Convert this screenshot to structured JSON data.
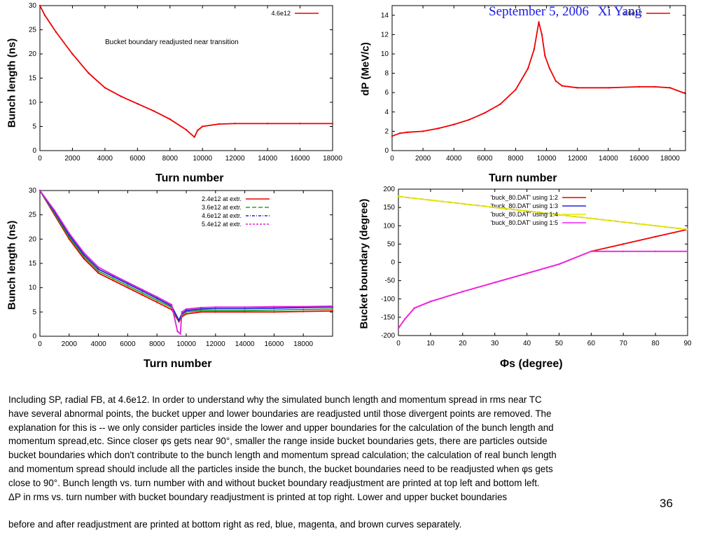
{
  "header": {
    "date": "September 5, 2006",
    "author": "Xi Yang"
  },
  "slide_number": "36",
  "caption": {
    "lines": [
      "Including SP, radial FB, at 4.6e12.  In order to understand why the simulated bunch length and momentum spread in rms near TC",
      "have several abnormal points, the bucket upper and lower boundaries are readjusted until those divergent points are removed.  The",
      "explanation for this is -- we only consider particles inside the lower and upper boundaries for the calculation of the bunch length and",
      "momentum spread,etc.  Since closer φs gets near 90°, smaller the range inside bucket boundaries gets, there are particles outside",
      "bucket boundaries which don't contribute to the bunch length and momentum spread calculation; the calculation of real bunch length",
      "and momentum spread should include all the particles inside the bunch, the bucket boundaries need to be readjusted when φs gets",
      "close to 90°.  Bunch length vs. turn number with and without bucket boundary readjustment are printed at top left and bottom left.",
      "ΔP in rms vs. turn number with bucket boundary readjustment is printed at top right.  Lower and upper bucket boundaries"
    ],
    "last_line": "before and after readjustment are printed at bottom right as red, blue, magenta, and brown curves separately."
  },
  "chart_data": [
    {
      "type": "line",
      "xlabel": "Turn number",
      "ylabel": "Bunch length (ns)",
      "xlim": [
        0,
        18000
      ],
      "ylim": [
        0,
        30
      ],
      "xticks": [
        0,
        2000,
        4000,
        6000,
        8000,
        10000,
        12000,
        14000,
        16000,
        18000
      ],
      "yticks": [
        0,
        5,
        10,
        15,
        20,
        25,
        30
      ],
      "annotation": "Bucket boundary readjusted near transition",
      "legend_position": "top-right",
      "series": [
        {
          "name": "4.6e12",
          "color": "#ee0000",
          "x": [
            0,
            300,
            1000,
            2000,
            3000,
            4000,
            5000,
            6000,
            7000,
            8000,
            9000,
            9500,
            9700,
            10000,
            11000,
            12000,
            14000,
            16000,
            18000
          ],
          "y": [
            30,
            28,
            24.5,
            20,
            16,
            13,
            11.2,
            9.7,
            8.2,
            6.5,
            4.3,
            2.8,
            4.2,
            5.0,
            5.5,
            5.6,
            5.6,
            5.6,
            5.6
          ]
        }
      ]
    },
    {
      "type": "line",
      "xlabel": "Turn number",
      "ylabel": "dP (MeV/c)",
      "xlim": [
        0,
        19000
      ],
      "ylim": [
        0,
        15
      ],
      "xticks": [
        0,
        2000,
        4000,
        6000,
        8000,
        10000,
        12000,
        14000,
        16000,
        18000
      ],
      "yticks": [
        0,
        2,
        4,
        6,
        8,
        10,
        12,
        14
      ],
      "legend_position": "top-right",
      "series": [
        {
          "name": "4.6e12",
          "color": "#ee0000",
          "x": [
            0,
            500,
            1000,
            2000,
            3000,
            4000,
            5000,
            6000,
            7000,
            8000,
            8800,
            9200,
            9500,
            9700,
            9900,
            10200,
            10600,
            11000,
            12000,
            14000,
            16000,
            17000,
            18000,
            19000
          ],
          "y": [
            1.5,
            1.8,
            1.9,
            2.0,
            2.3,
            2.7,
            3.2,
            3.9,
            4.8,
            6.3,
            8.5,
            10.5,
            13.3,
            12.0,
            9.8,
            8.5,
            7.2,
            6.7,
            6.5,
            6.5,
            6.6,
            6.6,
            6.5,
            5.9
          ]
        }
      ]
    },
    {
      "type": "line",
      "xlabel": "Turn number",
      "ylabel": "Bunch length (ns)",
      "xlim": [
        0,
        20000
      ],
      "ylim": [
        0,
        30
      ],
      "xticks": [
        0,
        2000,
        4000,
        6000,
        8000,
        10000,
        12000,
        14000,
        16000,
        18000
      ],
      "yticks": [
        0,
        5,
        10,
        15,
        20,
        25,
        30
      ],
      "legend_position": "top-right",
      "series": [
        {
          "name": "2.4e12 at extr.",
          "color": "#ee0000",
          "x": [
            0,
            1000,
            2000,
            3000,
            4000,
            5000,
            6000,
            7000,
            8000,
            9000,
            9500,
            9700,
            10000,
            11000,
            12000,
            14000,
            16000,
            18000,
            20000
          ],
          "y": [
            30,
            25,
            20,
            16,
            13,
            11.5,
            10,
            8.5,
            7,
            5.5,
            3.0,
            4.0,
            4.6,
            5.0,
            5.0,
            5.0,
            5.0,
            5.1,
            5.2
          ]
        },
        {
          "name": "3.6e12 at extr.",
          "color": "#22aa22",
          "x": [
            0,
            1000,
            2000,
            3000,
            4000,
            5000,
            6000,
            7000,
            8000,
            9000,
            9500,
            9700,
            10000,
            11000,
            12000,
            14000,
            16000,
            18000,
            20000
          ],
          "y": [
            30,
            25.3,
            20.4,
            16.4,
            13.4,
            11.9,
            10.4,
            8.9,
            7.4,
            5.9,
            3.2,
            4.3,
            5.0,
            5.3,
            5.3,
            5.3,
            5.4,
            5.5,
            5.6
          ]
        },
        {
          "name": "4.6e12 at extr.",
          "color": "#2222dd",
          "x": [
            0,
            1000,
            2000,
            3000,
            4000,
            5000,
            6000,
            7000,
            8000,
            9000,
            9500,
            9700,
            10000,
            11000,
            12000,
            14000,
            16000,
            18000,
            20000
          ],
          "y": [
            30,
            25.6,
            20.8,
            16.8,
            13.8,
            12.3,
            10.8,
            9.3,
            7.8,
            6.2,
            3.3,
            4.6,
            5.3,
            5.6,
            5.7,
            5.7,
            5.8,
            5.9,
            6.0
          ]
        },
        {
          "name": "5.4e12 at extr.",
          "color": "#dd22dd",
          "x": [
            0,
            1000,
            2000,
            3000,
            4000,
            5000,
            6000,
            7000,
            8000,
            9000,
            9400,
            9600,
            9700,
            10000,
            11000,
            12000,
            14000,
            16000,
            18000,
            20000
          ],
          "y": [
            30,
            25.9,
            21.2,
            17.2,
            14.2,
            12.6,
            11.1,
            9.6,
            8.1,
            6.5,
            1.0,
            0.5,
            5.0,
            5.6,
            5.9,
            6.0,
            6.0,
            6.1,
            6.1,
            6.2
          ]
        }
      ]
    },
    {
      "type": "line",
      "xlabel": "Φs (degree)",
      "ylabel": "Bucket boundary (degree)",
      "xlim": [
        0,
        90
      ],
      "ylim": [
        -200,
        200
      ],
      "xticks": [
        0,
        10,
        20,
        30,
        40,
        50,
        60,
        70,
        80,
        90
      ],
      "yticks": [
        -200,
        -150,
        -100,
        -50,
        0,
        50,
        100,
        150,
        200
      ],
      "legend_position": "top-right",
      "series": [
        {
          "name": "'buck_80.DAT' using 1:2",
          "color": "#ee0000",
          "x": [
            0,
            2,
            5,
            10,
            20,
            30,
            40,
            50,
            60,
            70,
            80,
            90
          ],
          "y": [
            -180,
            -155,
            -125,
            -107,
            -80,
            -55,
            -30,
            -5,
            30,
            50,
            70,
            90
          ]
        },
        {
          "name": "'buck_80.DAT' using 1:3",
          "color": "#2222dd",
          "x": [
            0,
            10,
            20,
            30,
            40,
            50,
            60,
            70,
            80,
            90
          ],
          "y": [
            180,
            170,
            160,
            150,
            140,
            130,
            120,
            110,
            100,
            90
          ]
        },
        {
          "name": "'buck_80.DAT' using 1:4",
          "color": "#e8e800",
          "x": [
            0,
            10,
            20,
            30,
            40,
            50,
            60,
            70,
            80,
            90
          ],
          "y": [
            180,
            170,
            160,
            150,
            140,
            130,
            120,
            110,
            100,
            90
          ]
        },
        {
          "name": "'buck_80.DAT' using 1:5",
          "color": "#ee22ee",
          "x": [
            0,
            2,
            5,
            10,
            20,
            30,
            40,
            50,
            60,
            70,
            80,
            90
          ],
          "y": [
            -180,
            -155,
            -125,
            -107,
            -80,
            -55,
            -30,
            -5,
            30,
            30,
            30,
            30
          ]
        }
      ]
    }
  ]
}
